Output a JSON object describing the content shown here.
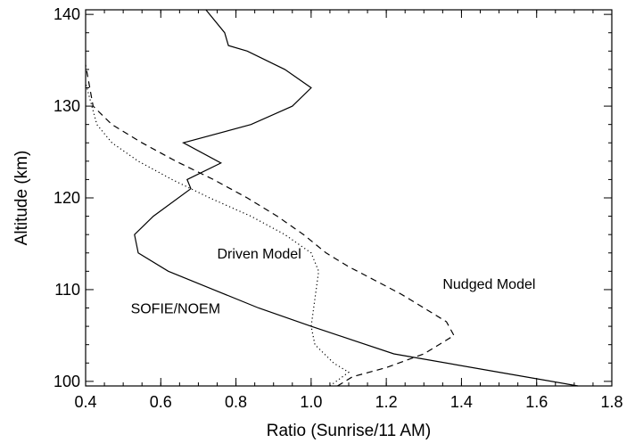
{
  "chart_data": {
    "type": "line",
    "xlabel": "Ratio (Sunrise/11 AM)",
    "ylabel": "Altitude (km)",
    "xlim": [
      0.4,
      1.8
    ],
    "ylim": [
      99.5,
      140.5
    ],
    "xticks": [
      "0.4",
      "0.6",
      "0.8",
      "1.0",
      "1.2",
      "1.4",
      "1.6",
      "1.8"
    ],
    "yticks": [
      "100",
      "110",
      "120",
      "130",
      "140"
    ],
    "grid": false,
    "series": [
      {
        "name": "SOFIE/NOEM",
        "style": "solid",
        "x": [
          1.71,
          1.5,
          1.22,
          1.0,
          0.86,
          0.74,
          0.62,
          0.54,
          0.53,
          0.58,
          0.68,
          0.67,
          0.76,
          0.66,
          0.84,
          0.95,
          1.0,
          0.93,
          0.83,
          0.78,
          0.77,
          0.72
        ],
        "y": [
          99.5,
          101,
          103,
          106,
          108,
          110,
          112,
          114,
          116,
          118,
          121,
          122,
          123.8,
          126,
          128,
          130,
          132,
          134,
          136,
          136.6,
          138,
          140.5
        ]
      },
      {
        "name": "Driven Model",
        "style": "dotted",
        "x": [
          1.05,
          1.1,
          1.06,
          1.01,
          1.0,
          1.01,
          1.02,
          1.0,
          0.93,
          0.84,
          0.73,
          0.63,
          0.54,
          0.47,
          0.43,
          0.4
        ],
        "y": [
          99.5,
          101,
          102,
          104,
          106,
          109,
          112,
          114,
          116,
          118,
          120,
          122,
          124,
          126,
          128,
          132.5
        ]
      },
      {
        "name": "Nudged Model",
        "style": "dashed",
        "x": [
          1.07,
          1.11,
          1.2,
          1.3,
          1.38,
          1.36,
          1.3,
          1.24,
          1.17,
          1.1,
          1.04,
          0.98,
          0.91,
          0.83,
          0.74,
          0.64,
          0.55,
          0.47,
          0.42,
          0.4
        ],
        "y": [
          99.5,
          100.5,
          101.5,
          103,
          105,
          106.5,
          108,
          109.5,
          111,
          112.5,
          114,
          116,
          118,
          120,
          122,
          124,
          126,
          128,
          130,
          134.5
        ]
      }
    ],
    "annotations": [
      {
        "text": "Driven Model",
        "x": 0.75,
        "y": 113.4
      },
      {
        "text": "Nudged Model",
        "x": 1.35,
        "y": 110.1
      },
      {
        "text": "SOFIE/NOEM",
        "x": 0.52,
        "y": 107.4
      }
    ]
  }
}
